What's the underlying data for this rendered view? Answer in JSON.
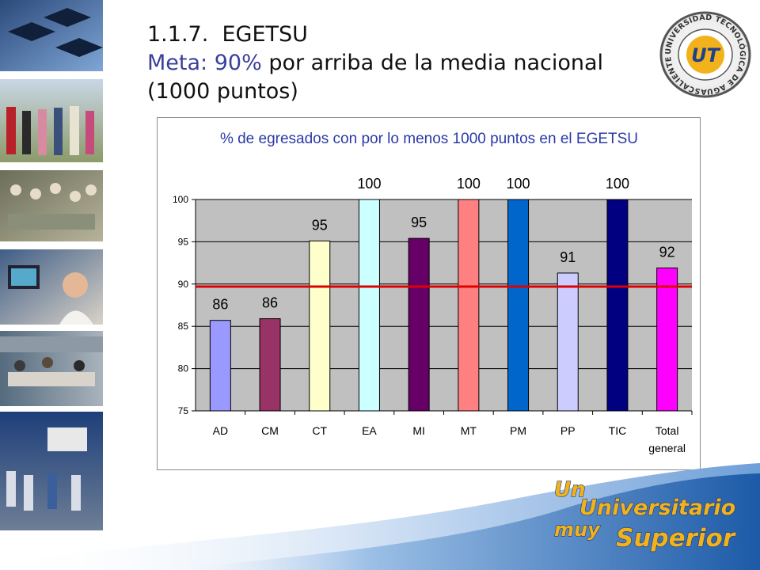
{
  "slide": {
    "title_number": "1.1.7.",
    "title_name": "EGETSU",
    "meta_label": "Meta: 90%",
    "meta_text": " por arriba de la media nacional",
    "meta_line2": "(1000 puntos)"
  },
  "logo": {
    "ring_text": "UNIVERSIDAD TECNOLÓGICA DE AGUASCALIENTES",
    "mark": "UT"
  },
  "slogan": {
    "line1": "Un",
    "line2": "Universitario",
    "line3": "muy",
    "line4": "Superior"
  },
  "colors": {
    "title_accent": "#3a3f9a",
    "chart_title": "#2b3aa6",
    "plot_bg": "#c0c0c0",
    "target_line": "#e00000"
  },
  "chart_data": {
    "type": "bar",
    "title": "% de egresados con por lo menos 1000 puntos en el EGETSU",
    "categories": [
      "AD",
      "CM",
      "CT",
      "EA",
      "MI",
      "MT",
      "PM",
      "PP",
      "TIC",
      "Total general"
    ],
    "category_lines": [
      [
        "AD"
      ],
      [
        "CM"
      ],
      [
        "CT"
      ],
      [
        "EA"
      ],
      [
        "MI"
      ],
      [
        "MT"
      ],
      [
        "PM"
      ],
      [
        "PP"
      ],
      [
        "TIC"
      ],
      [
        "Total",
        "general"
      ]
    ],
    "values": [
      85.7,
      85.9,
      95.1,
      100,
      95.4,
      100,
      100,
      91.3,
      100,
      91.9
    ],
    "data_labels": [
      "86",
      "86",
      "95",
      "100",
      "95",
      "100",
      "100",
      "91",
      "100",
      "92"
    ],
    "bar_colors": [
      "#9999ff",
      "#993366",
      "#ffffcc",
      "#ccffff",
      "#660066",
      "#ff8080",
      "#0066cc",
      "#ccccff",
      "#000080",
      "#ff00ff"
    ],
    "ylim": [
      75,
      100
    ],
    "yticks": [
      75,
      80,
      85,
      90,
      95,
      100
    ],
    "target_value": 89.7,
    "grid": true,
    "legend": "none",
    "xlabel": "",
    "ylabel": ""
  }
}
